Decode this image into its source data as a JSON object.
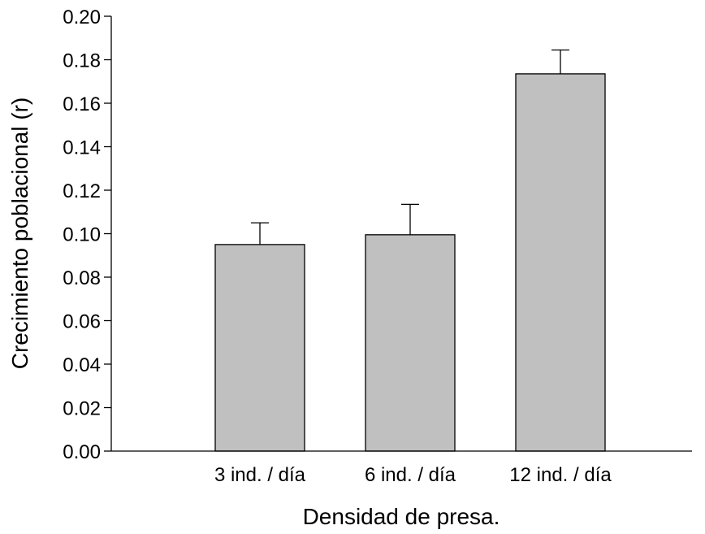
{
  "chart_data": {
    "type": "bar",
    "title": "",
    "xlabel": "Densidad de presa.",
    "ylabel": "Crecimiento poblacional (r)",
    "categories": [
      "3 ind. / día",
      "6 ind. / día",
      "12 ind. / día"
    ],
    "values": [
      0.095,
      0.0995,
      0.1735
    ],
    "errors": [
      0.01,
      0.014,
      0.011
    ],
    "ylim": [
      0,
      0.2
    ],
    "yticks": [
      "0.00",
      "0.02",
      "0.04",
      "0.06",
      "0.08",
      "0.10",
      "0.12",
      "0.14",
      "0.16",
      "0.18",
      "0.20"
    ],
    "grid": false,
    "bar_color": "#c0c0c0",
    "edge_color": "#000000"
  }
}
